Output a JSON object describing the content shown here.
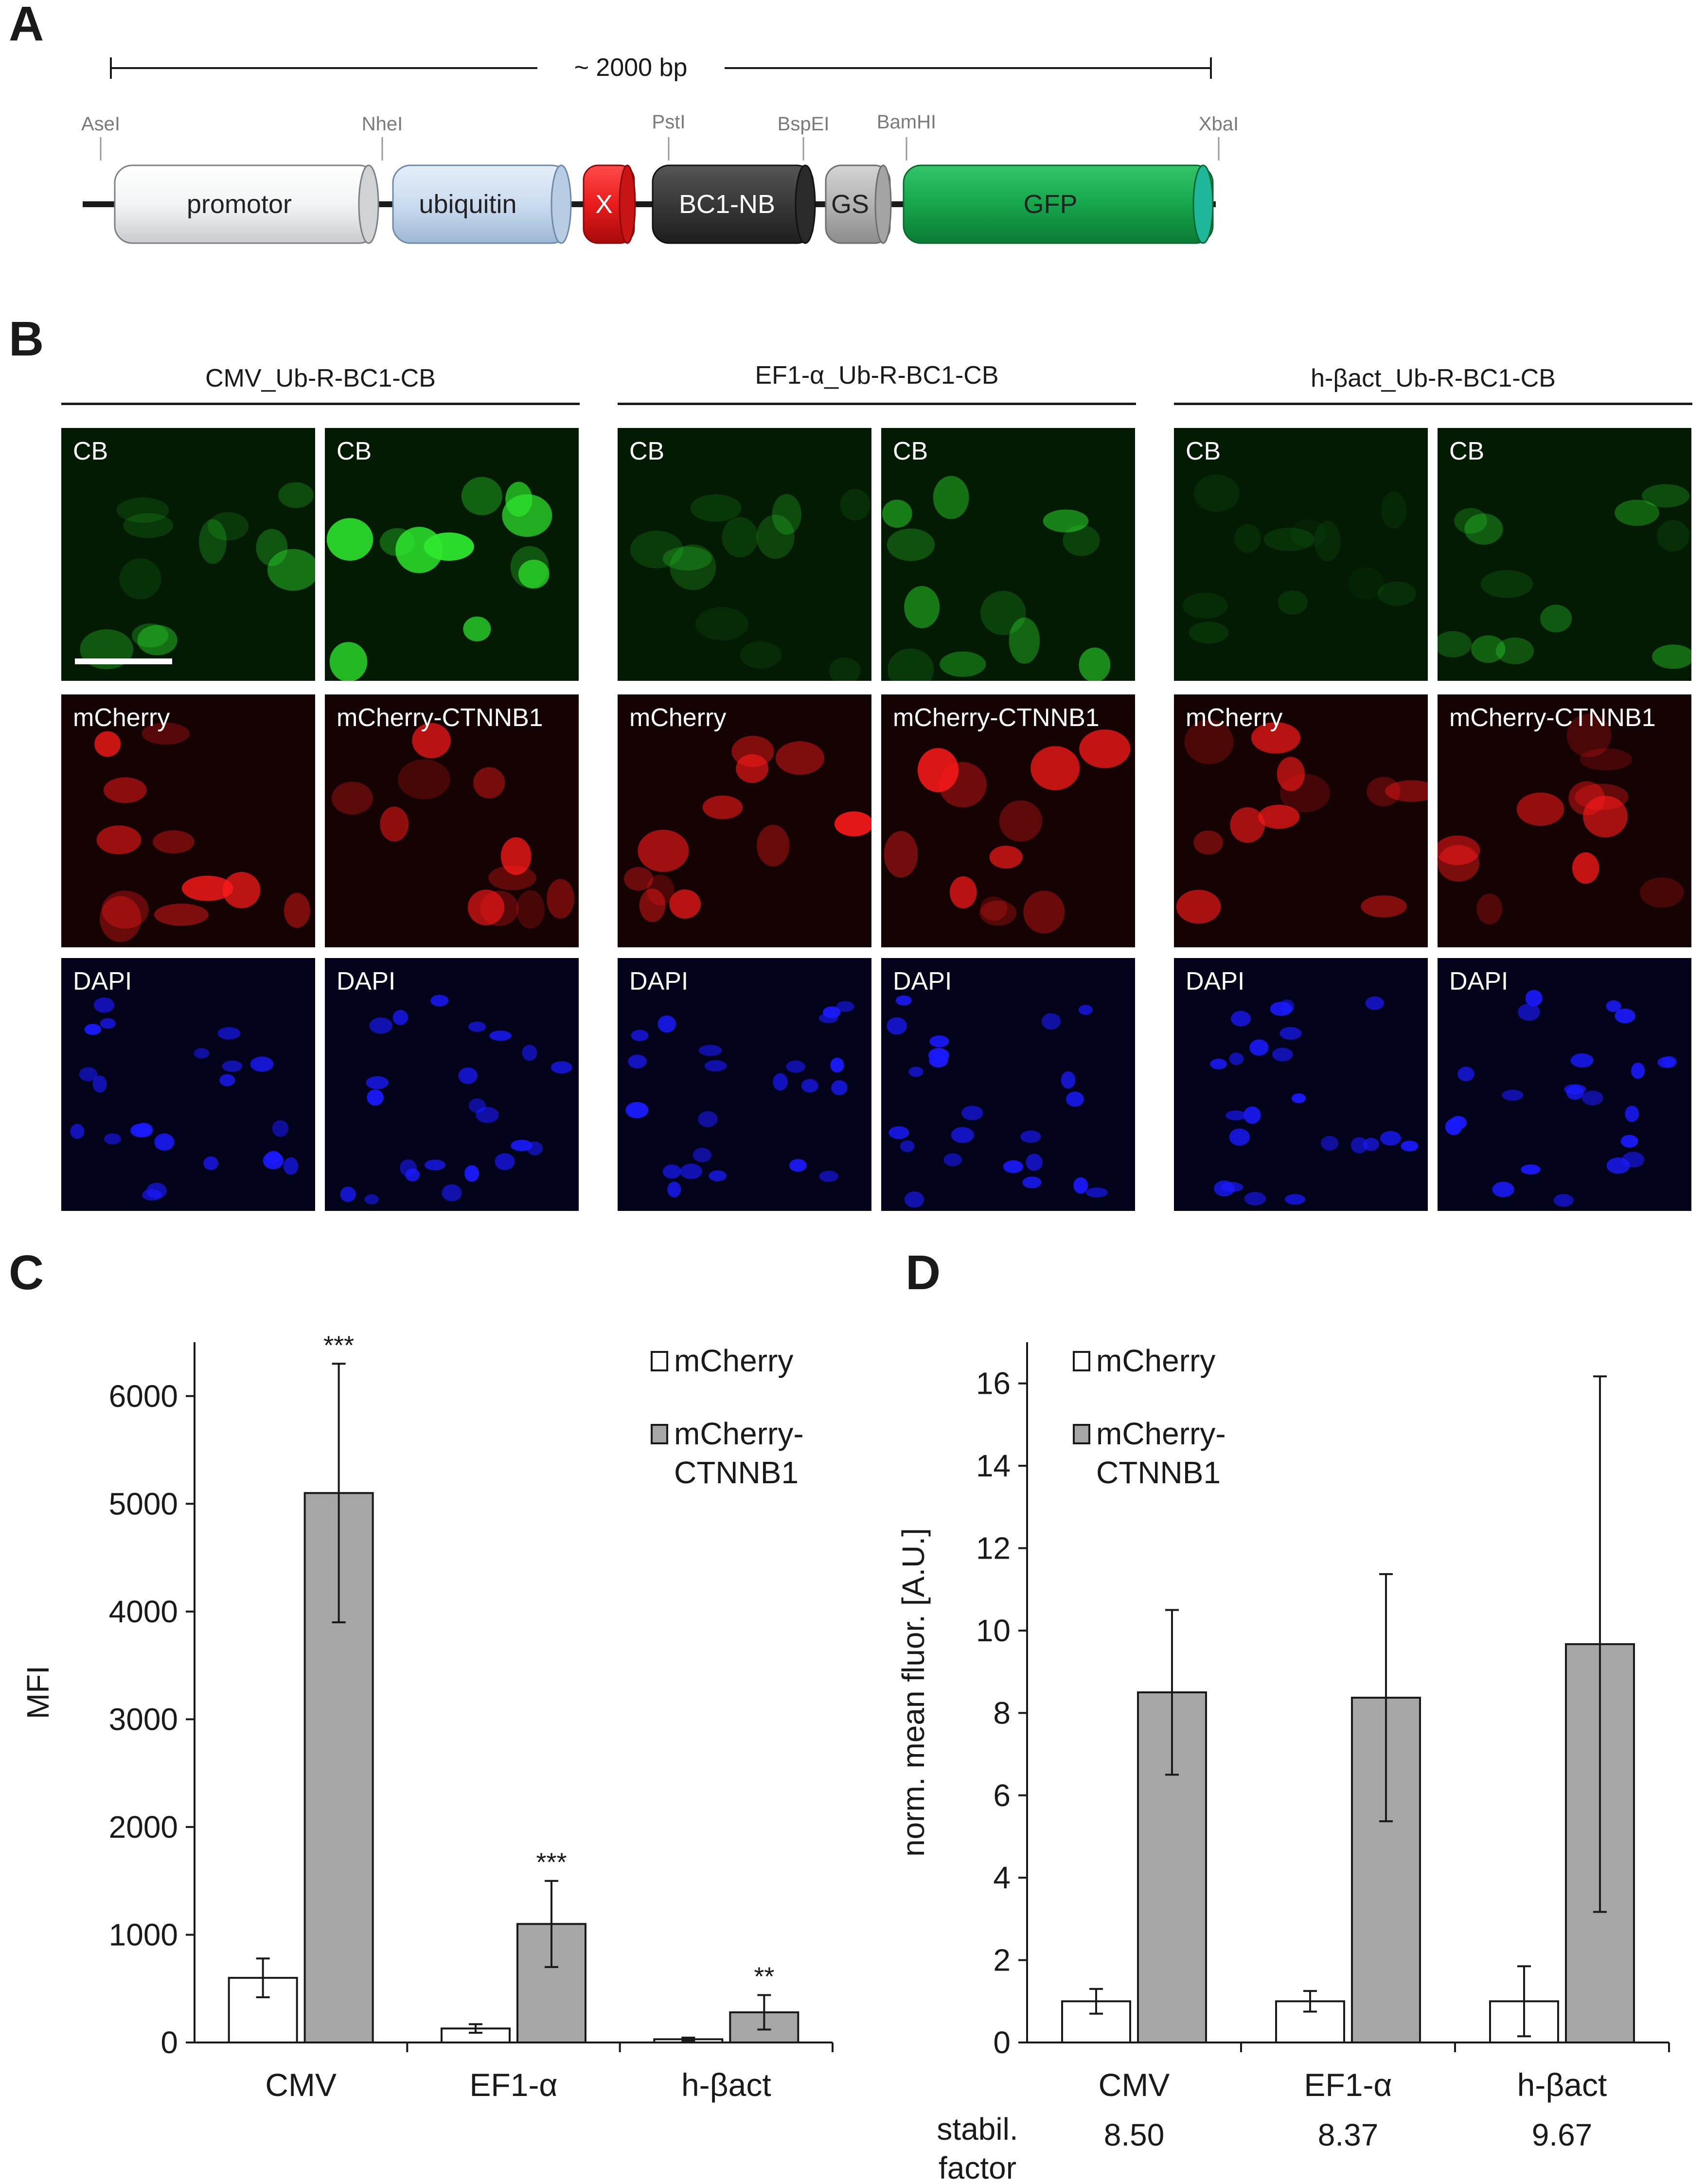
{
  "panel_a": {
    "letter": "A",
    "length_label": "~ 2000 bp",
    "sites": [
      "AseI",
      "NheI",
      "PstI",
      "BspEI",
      "BamHI",
      "XbaI"
    ],
    "segments": [
      {
        "label": "promotor",
        "color": "#f4f5f6",
        "text_color": "#222222"
      },
      {
        "label": "ubiquitin",
        "color": "#cfe0f2",
        "text_color": "#222222"
      },
      {
        "label": "X",
        "color": "#e81c1c",
        "text_color": "#ffffff"
      },
      {
        "label": "BC1-NB",
        "color": "#3b3b3b",
        "text_color": "#ffffff"
      },
      {
        "label": "GS",
        "color": "#b5b5b5",
        "text_color": "#222222"
      },
      {
        "label": "GFP",
        "color": "#18a94e",
        "text_color": "#222222"
      }
    ]
  },
  "panel_b": {
    "letter": "B",
    "groups": [
      {
        "title": "CMV_Ub-R-BC1-CB"
      },
      {
        "title": "EF1-α_Ub-R-BC1-CB"
      },
      {
        "title": "h-βact_Ub-R-BC1-CB"
      }
    ],
    "row_labels": [
      [
        "CB",
        "CB"
      ],
      [
        "mCherry",
        "mCherry-CTNNB1"
      ],
      [
        "DAPI",
        "DAPI"
      ]
    ],
    "channel_colors": {
      "green": "#2ee82e",
      "red": "#ff1a1a",
      "blue": "#1a1aff"
    }
  },
  "chart_c": {
    "letter": "C",
    "chart_data": {
      "type": "bar",
      "categories": [
        "CMV",
        "EF1-α",
        "h-βact"
      ],
      "series": [
        {
          "name": "mCherry",
          "values": [
            600,
            130,
            30
          ],
          "errors": [
            180,
            40,
            15
          ],
          "color": "#ffffff"
        },
        {
          "name": "mCherry-CTNNB1",
          "values": [
            5100,
            1100,
            280
          ],
          "errors": [
            1200,
            400,
            160
          ],
          "color": "#a6a6a6"
        }
      ],
      "significance": [
        "***",
        "***",
        "**"
      ],
      "ylabel": "MFI",
      "yticks": [
        0,
        1000,
        2000,
        3000,
        4000,
        5000,
        6000
      ],
      "ylim": [
        0,
        6500
      ],
      "legend": [
        "mCherry",
        "mCherry-",
        "CTNNB1"
      ]
    }
  },
  "chart_d": {
    "letter": "D",
    "chart_data": {
      "type": "bar",
      "categories": [
        "CMV",
        "EF1-α",
        "h-βact"
      ],
      "series": [
        {
          "name": "mCherry",
          "values": [
            1.0,
            1.0,
            1.0
          ],
          "errors": [
            0.3,
            0.25,
            0.85
          ],
          "color": "#ffffff"
        },
        {
          "name": "mCherry-CTNNB1",
          "values": [
            8.5,
            8.37,
            9.67
          ],
          "errors": [
            2.0,
            3.0,
            6.5
          ],
          "color": "#a6a6a6"
        }
      ],
      "ylabel": "norm. mean fluor. [A.U.]",
      "yticks": [
        0,
        2,
        4,
        6,
        8,
        10,
        12,
        14,
        16
      ],
      "ylim": [
        0,
        17
      ],
      "legend": [
        "mCherry",
        "mCherry-",
        "CTNNB1"
      ],
      "stabil_label_1": "stabil.",
      "stabil_label_2": "factor",
      "stabil_values": [
        "8.50",
        "8.37",
        "9.67"
      ]
    }
  }
}
